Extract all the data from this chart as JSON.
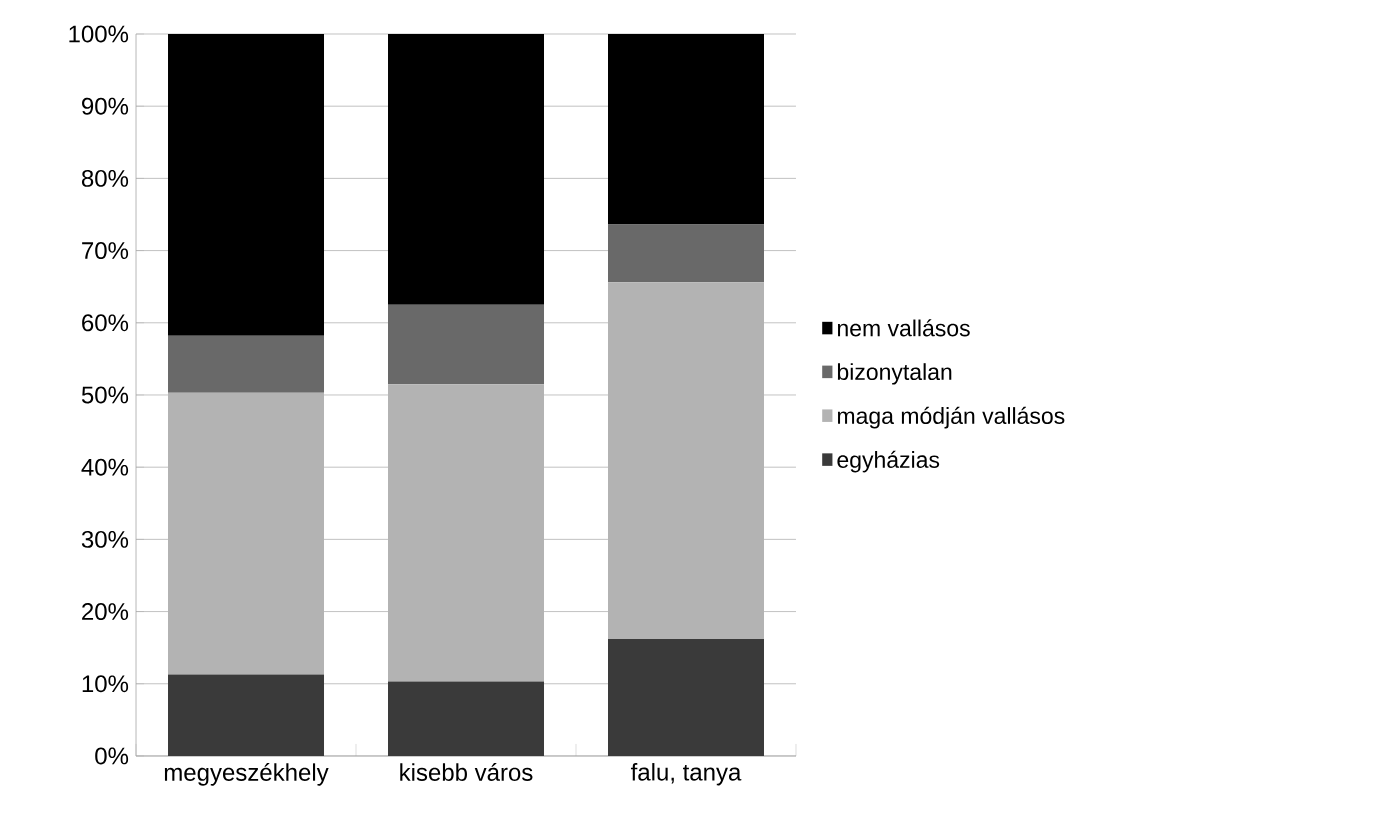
{
  "chart_data": {
    "type": "bar",
    "stacked": true,
    "categories": [
      "megyeszékhely",
      "kisebb város",
      "falu, tanya"
    ],
    "series": [
      {
        "name": "egyházias",
        "color": "#3a3a3a",
        "values": [
          11.3,
          10.3,
          16.2
        ]
      },
      {
        "name": "maga módján vallásos",
        "color": "#b3b3b3",
        "values": [
          39.0,
          41.2,
          49.4
        ]
      },
      {
        "name": "bizonytalan",
        "color": "#696969",
        "values": [
          7.9,
          11.0,
          8.0
        ]
      },
      {
        "name": "nem vallásos",
        "color": "#000000",
        "values": [
          41.8,
          37.5,
          26.4
        ]
      }
    ],
    "ylim": [
      0,
      100
    ],
    "yticks": [
      {
        "value": 0,
        "label": "0%"
      },
      {
        "value": 10,
        "label": "10%"
      },
      {
        "value": 20,
        "label": "20%"
      },
      {
        "value": 30,
        "label": "30%"
      },
      {
        "value": 40,
        "label": "40%"
      },
      {
        "value": 50,
        "label": "50%"
      },
      {
        "value": 60,
        "label": "60%"
      },
      {
        "value": 70,
        "label": "70%"
      },
      {
        "value": 80,
        "label": "80%"
      },
      {
        "value": 90,
        "label": "90%"
      },
      {
        "value": 100,
        "label": "100%"
      }
    ],
    "grid": "y",
    "legend": "right"
  }
}
